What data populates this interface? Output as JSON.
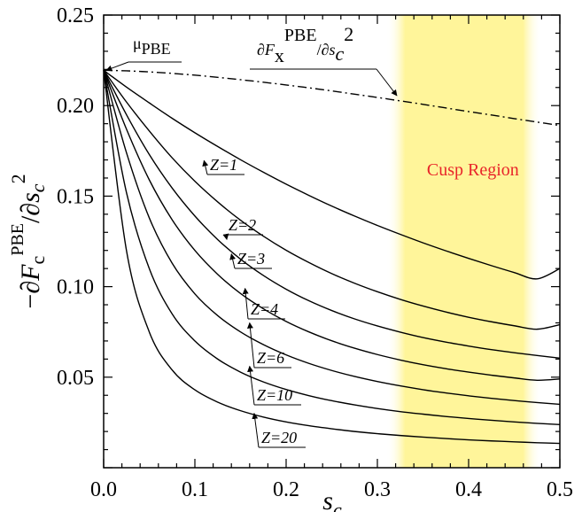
{
  "chart_data": {
    "type": "line",
    "xlabel": "s",
    "xlabel_sub": "c",
    "ylabel_parts": {
      "minus_partial": "−∂",
      "F": "F",
      "sub": "c",
      "sup": "PBE",
      "slash_partial": "/∂",
      "s": "s",
      "s_sub": "c",
      "s_sup": "2"
    },
    "xlim": [
      0.0,
      0.5
    ],
    "ylim": [
      0.0,
      0.25
    ],
    "xticks": [
      0.0,
      0.1,
      0.2,
      0.3,
      0.4,
      0.5
    ],
    "xtick_labels": [
      "0.0",
      "0.1",
      "0.2",
      "0.3",
      "0.4",
      "0.5"
    ],
    "yticks": [
      0.05,
      0.1,
      0.15,
      0.2,
      0.25
    ],
    "ytick_labels": [
      "0.05",
      "0.10",
      "0.15",
      "0.20",
      "0.25"
    ],
    "grid": false,
    "x": [
      0.0,
      0.025,
      0.05,
      0.075,
      0.1,
      0.125,
      0.15,
      0.175,
      0.2,
      0.225,
      0.25,
      0.275,
      0.3,
      0.325,
      0.35,
      0.375,
      0.4,
      0.425,
      0.45,
      0.475,
      0.5
    ],
    "series": [
      {
        "name": "∂Fx^PBE/∂sc^2",
        "style": "dash-dot",
        "values": [
          0.2195,
          0.2192,
          0.2186,
          0.2178,
          0.2168,
          0.2156,
          0.2143,
          0.2129,
          0.2114,
          0.2098,
          0.2081,
          0.2063,
          0.2045,
          0.2026,
          0.2007,
          0.1987,
          0.1967,
          0.1948,
          0.1928,
          0.1909,
          0.189
        ]
      },
      {
        "name": "Z=1",
        "style": "solid",
        "values": [
          0.2195,
          0.2102,
          0.2015,
          0.193,
          0.185,
          0.1774,
          0.1701,
          0.1632,
          0.1566,
          0.1504,
          0.1445,
          0.139,
          0.1338,
          0.1289,
          0.1242,
          0.1198,
          0.1156,
          0.1116,
          0.1078,
          0.1043,
          0.11
        ]
      },
      {
        "name": "Z=2",
        "style": "solid",
        "values": [
          0.2195,
          0.202,
          0.186,
          0.1712,
          0.1582,
          0.1468,
          0.1367,
          0.1279,
          0.1201,
          0.1133,
          0.1072,
          0.1019,
          0.0972,
          0.093,
          0.0893,
          0.086,
          0.0831,
          0.0806,
          0.0784,
          0.0765,
          0.079
        ]
      },
      {
        "name": "Z=3",
        "style": "solid",
        "values": [
          0.2195,
          0.195,
          0.173,
          0.1545,
          0.139,
          0.126,
          0.1152,
          0.1062,
          0.0986,
          0.0922,
          0.0868,
          0.0822,
          0.0783,
          0.0749,
          0.0719,
          0.0694,
          0.0672,
          0.0652,
          0.0635,
          0.062,
          0.0605
        ]
      },
      {
        "name": "Z=4",
        "style": "solid",
        "values": [
          0.2195,
          0.187,
          0.159,
          0.137,
          0.12,
          0.1068,
          0.0962,
          0.0878,
          0.0808,
          0.075,
          0.0701,
          0.066,
          0.0625,
          0.0595,
          0.0569,
          0.0547,
          0.0528,
          0.0511,
          0.0496,
          0.0483,
          0.049
        ]
      },
      {
        "name": "Z=6",
        "style": "solid",
        "values": [
          0.2195,
          0.174,
          0.138,
          0.113,
          0.096,
          0.084,
          0.075,
          0.068,
          0.0623,
          0.0576,
          0.0537,
          0.0504,
          0.0476,
          0.0452,
          0.0431,
          0.0413,
          0.0397,
          0.0383,
          0.0371,
          0.036,
          0.035
        ]
      },
      {
        "name": "Z=10",
        "style": "solid",
        "values": [
          0.2195,
          0.152,
          0.11,
          0.085,
          0.07,
          0.06,
          0.0528,
          0.0474,
          0.0432,
          0.0398,
          0.037,
          0.0347,
          0.0327,
          0.031,
          0.0296,
          0.0283,
          0.0272,
          0.0262,
          0.0253,
          0.0245,
          0.0238
        ]
      },
      {
        "name": "Z=20",
        "style": "solid",
        "values": [
          0.2195,
          0.12,
          0.075,
          0.054,
          0.043,
          0.0362,
          0.0315,
          0.028,
          0.0253,
          0.0232,
          0.0215,
          0.02,
          0.0188,
          0.0178,
          0.0169,
          0.0161,
          0.0154,
          0.0148,
          0.0143,
          0.0138,
          0.0134
        ]
      }
    ],
    "annotations": {
      "mu_pbe": {
        "text": "μ",
        "sub": "PBE",
        "points_to_x": 0.0,
        "points_to_y": 0.2195
      },
      "fx_label": {
        "partial": "∂",
        "F": "F",
        "sub": "x",
        "sup": "PBE",
        "slash_partial": "/∂",
        "s": "s",
        "s_sub": "c",
        "s_sup": "2",
        "points_to_x": 0.32,
        "points_to_y": 0.2045
      },
      "z_labels": [
        {
          "text": "Z=1",
          "points_to_x": 0.11,
          "points_to_y": 0.1716
        },
        {
          "text": "Z=2",
          "points_to_x": 0.135,
          "points_to_y": 0.128
        },
        {
          "text": "Z=3",
          "points_to_x": 0.14,
          "points_to_y": 0.12
        },
        {
          "text": "Z=4",
          "points_to_x": 0.155,
          "points_to_y": 0.101
        },
        {
          "text": "Z=6",
          "points_to_x": 0.16,
          "points_to_y": 0.082
        },
        {
          "text": "Z=10",
          "points_to_x": 0.16,
          "points_to_y": 0.058
        },
        {
          "text": "Z=20",
          "points_to_x": 0.165,
          "points_to_y": 0.032
        }
      ]
    },
    "region": {
      "label": "Cusp Region",
      "x_start": 0.31,
      "x_end": 0.48,
      "label_color": "#e8252a",
      "fill_color": "#fff59a"
    }
  }
}
